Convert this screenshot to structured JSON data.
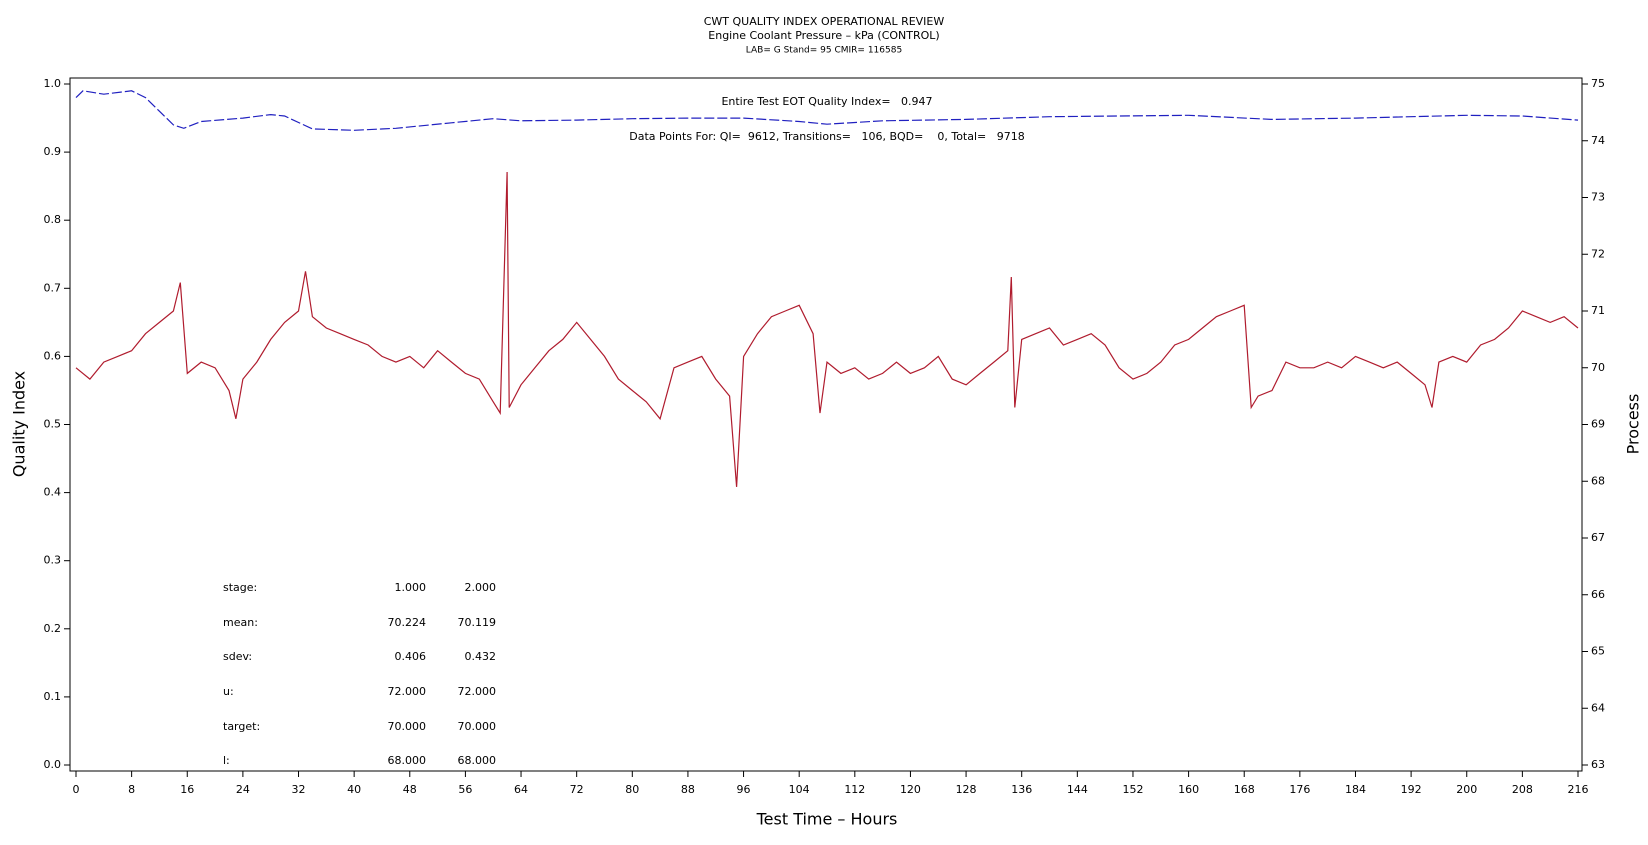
{
  "chart_data": {
    "type": "line",
    "title": "CWT QUALITY INDEX OPERATIONAL REVIEW",
    "subtitle": "Engine Coolant Pressure – kPa (CONTROL)",
    "subtitle2": "LAB= G Stand= 95 CMIR= 116585",
    "annotations": [
      "Entire Test EOT Quality Index=   0.947",
      "Data Points For: QI=  9612, Transitions=   106, BQD=    0, Total=   9718"
    ],
    "stats": {
      "rows": [
        [
          "stage:",
          "1.000",
          "2.000"
        ],
        [
          "mean:",
          "70.224",
          "70.119"
        ],
        [
          "sdev:",
          "0.406",
          "0.432"
        ],
        [
          "u:",
          "72.000",
          "72.000"
        ],
        [
          "target:",
          "70.000",
          "70.000"
        ],
        [
          "l:",
          "68.000",
          "68.000"
        ]
      ]
    },
    "xlabel": "Test Time – Hours",
    "ylabel": "Quality Index",
    "y2label": "Process",
    "xlim": [
      0,
      216
    ],
    "xticks": [
      0,
      8,
      16,
      24,
      32,
      40,
      48,
      56,
      64,
      72,
      80,
      88,
      96,
      104,
      112,
      120,
      128,
      136,
      144,
      152,
      160,
      168,
      176,
      184,
      192,
      200,
      208,
      216
    ],
    "ylim": [
      0,
      1
    ],
    "yticks": [
      {
        "value": 0,
        "label": "0.0"
      },
      0.1,
      0.2,
      0.3,
      0.4,
      0.5,
      0.6,
      0.7,
      0.8,
      0.9,
      {
        "value": 1,
        "label": "1.0"
      }
    ],
    "y2lim": [
      63,
      75
    ],
    "y2ticks": [
      63,
      64,
      65,
      66,
      67,
      68,
      69,
      70,
      71,
      72,
      73,
      74,
      75
    ],
    "series": [
      {
        "color": "#b01c2e",
        "axis": "y2",
        "dashed": false,
        "x": [
          0,
          2,
          4,
          6,
          8,
          10,
          12,
          14,
          15,
          16,
          18,
          20,
          22,
          23,
          24,
          26,
          28,
          30,
          32,
          33,
          34,
          36,
          38,
          40,
          42,
          44,
          46,
          48,
          50,
          52,
          54,
          56,
          58,
          60,
          61,
          62,
          62.3,
          64,
          66,
          68,
          70,
          72,
          74,
          76,
          78,
          80,
          82,
          84,
          86,
          88,
          90,
          92,
          94,
          95,
          96,
          98,
          100,
          102,
          104,
          106,
          107,
          108,
          110,
          112,
          114,
          116,
          118,
          120,
          122,
          124,
          126,
          128,
          130,
          132,
          134,
          134.5,
          135,
          136,
          138,
          140,
          142,
          144,
          146,
          148,
          150,
          152,
          154,
          156,
          158,
          160,
          162,
          164,
          166,
          168,
          169,
          170,
          172,
          174,
          176,
          178,
          180,
          182,
          184,
          186,
          188,
          190,
          192,
          194,
          195,
          196,
          198,
          200,
          202,
          204,
          206,
          208,
          210,
          212,
          214,
          216
        ],
        "values": [
          70.0,
          69.8,
          70.1,
          70.2,
          70.3,
          70.6,
          70.8,
          71.0,
          71.5,
          69.9,
          70.1,
          70.0,
          69.6,
          69.1,
          69.8,
          70.1,
          70.5,
          70.8,
          71.0,
          71.7,
          70.9,
          70.7,
          70.6,
          70.5,
          70.4,
          70.2,
          70.1,
          70.2,
          70.0,
          70.3,
          70.1,
          69.9,
          69.8,
          69.4,
          69.2,
          73.45,
          69.3,
          69.7,
          70.0,
          70.3,
          70.5,
          70.8,
          70.5,
          70.2,
          69.8,
          69.6,
          69.4,
          69.1,
          70.0,
          70.1,
          70.2,
          69.8,
          69.5,
          67.9,
          70.2,
          70.6,
          70.9,
          71.0,
          71.1,
          70.6,
          69.2,
          70.1,
          69.9,
          70.0,
          69.8,
          69.9,
          70.1,
          69.9,
          70.0,
          70.2,
          69.8,
          69.7,
          69.9,
          70.1,
          70.3,
          71.6,
          69.3,
          70.5,
          70.6,
          70.7,
          70.4,
          70.5,
          70.6,
          70.4,
          70.0,
          69.8,
          69.9,
          70.1,
          70.4,
          70.5,
          70.7,
          70.9,
          71.0,
          71.1,
          69.3,
          69.5,
          69.6,
          70.1,
          70.0,
          70.0,
          70.1,
          70.0,
          70.2,
          70.1,
          70.0,
          70.1,
          69.9,
          69.7,
          69.3,
          70.1,
          70.2,
          70.1,
          70.4,
          70.5,
          70.7,
          71.0,
          70.9,
          70.8,
          70.9,
          70.7
        ]
      },
      {
        "color": "#2020c0",
        "axis": "y",
        "dashed": true,
        "x": [
          0,
          1,
          4,
          8,
          10,
          12,
          14,
          15.5,
          18,
          24,
          28,
          30,
          34,
          40,
          46,
          54,
          60,
          64,
          72,
          80,
          88,
          96,
          104,
          108,
          116,
          128,
          140,
          160,
          172,
          184,
          200,
          208,
          216
        ],
        "values": [
          0.98,
          0.99,
          0.985,
          0.99,
          0.98,
          0.96,
          0.94,
          0.935,
          0.945,
          0.95,
          0.955,
          0.953,
          0.934,
          0.932,
          0.935,
          0.943,
          0.949,
          0.946,
          0.947,
          0.949,
          0.95,
          0.95,
          0.945,
          0.941,
          0.946,
          0.948,
          0.952,
          0.954,
          0.948,
          0.95,
          0.954,
          0.953,
          0.947
        ]
      }
    ]
  }
}
